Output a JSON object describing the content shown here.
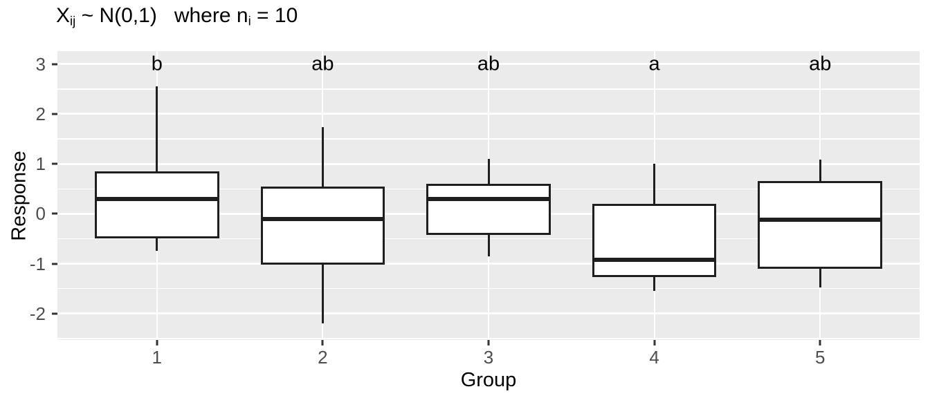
{
  "title": {
    "segments": [
      {
        "text": "X"
      },
      {
        "text": "ij",
        "sub": true
      },
      {
        "text": " ~ N(0,1)   where n"
      },
      {
        "text": "i",
        "sub": true
      },
      {
        "text": " = 10"
      }
    ],
    "plain": "X_ij ~ N(0,1)   where n_i = 10"
  },
  "chart_data": {
    "type": "boxplot",
    "title": "X_ij ~ N(0,1)   where n_i = 10",
    "xlabel": "Group",
    "ylabel": "Response",
    "categories": [
      "1",
      "2",
      "3",
      "4",
      "5"
    ],
    "significance_letters": [
      "b",
      "ab",
      "ab",
      "a",
      "ab"
    ],
    "series": [
      {
        "category": "1",
        "letter": "b",
        "whisker_low": -0.75,
        "q1": -0.5,
        "median": 0.3,
        "q3": 0.85,
        "whisker_high": 2.55
      },
      {
        "category": "2",
        "letter": "ab",
        "whisker_low": -2.2,
        "q1": -1.02,
        "median": -0.1,
        "q3": 0.55,
        "whisker_high": 1.73
      },
      {
        "category": "3",
        "letter": "ab",
        "whisker_low": -0.85,
        "q1": -0.43,
        "median": 0.3,
        "q3": 0.6,
        "whisker_high": 1.1
      },
      {
        "category": "4",
        "letter": "a",
        "whisker_low": -1.55,
        "q1": -1.27,
        "median": -0.93,
        "q3": 0.2,
        "whisker_high": 1.0
      },
      {
        "category": "5",
        "letter": "ab",
        "whisker_low": -1.48,
        "q1": -1.1,
        "median": -0.12,
        "q3": 0.66,
        "whisker_high": 1.08
      }
    ],
    "y_axis": {
      "tick_values": [
        3,
        2,
        1,
        0,
        -1,
        -2
      ],
      "tick_labels": [
        "3",
        "2",
        "1",
        "0",
        "-1",
        "-2"
      ],
      "minor_tick_values": [
        2.5,
        1.5,
        0.5,
        -0.5,
        -1.5,
        -2.5
      ],
      "ylim": [
        -2.53,
        3.26
      ]
    },
    "grid": true,
    "legend": "none",
    "outliers": [],
    "colors": {
      "panel_background": "#EBEBEB",
      "grid_major": "#FFFFFF",
      "grid_minor": "#FFFFFF",
      "box_fill": "#FFFFFF",
      "box_border": "#1F1F1F",
      "tick_label": "#4D4D4D",
      "tick_mark": "#333333",
      "axis_title": "#000000",
      "title": "#000000"
    }
  }
}
